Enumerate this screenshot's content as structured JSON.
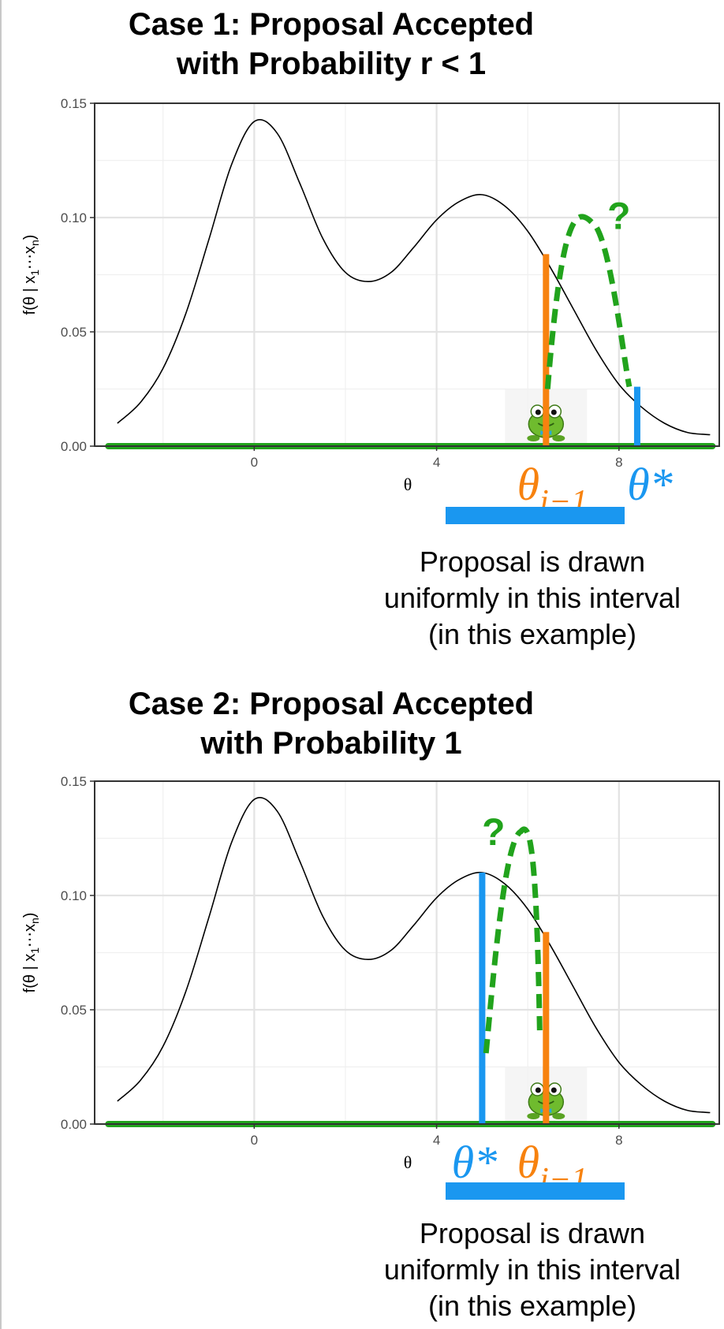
{
  "chart_data": [
    {
      "type": "line",
      "title_lines": [
        "Case 1: Proposal Accepted",
        "with Probability r < 1"
      ],
      "xlabel": "θ",
      "ylabel": "f(θ | x1⋯xn)",
      "xlim": [
        -3.5,
        10.2
      ],
      "ylim": [
        0,
        0.15
      ],
      "x_ticks": [
        0,
        4,
        8
      ],
      "y_ticks": [
        "0.00",
        "0.05",
        "0.10",
        "0.15"
      ],
      "grid": true,
      "density": {
        "x": [
          -3,
          -2.5,
          -2,
          -1.5,
          -1,
          -0.5,
          0,
          0.5,
          1,
          1.5,
          2,
          2.5,
          3,
          3.5,
          4,
          4.5,
          5,
          5.5,
          6,
          6.5,
          7,
          7.5,
          8,
          8.5,
          9,
          9.5,
          10
        ],
        "y": [
          0.01,
          0.019,
          0.034,
          0.058,
          0.09,
          0.123,
          0.142,
          0.137,
          0.115,
          0.091,
          0.076,
          0.072,
          0.076,
          0.087,
          0.099,
          0.107,
          0.11,
          0.105,
          0.094,
          0.078,
          0.06,
          0.042,
          0.027,
          0.017,
          0.01,
          0.006,
          0.005
        ]
      },
      "current_theta": {
        "label": "θi−1",
        "x": 6.4,
        "y": 0.084,
        "color": "#f7820f"
      },
      "proposal_theta": {
        "label": "θ*",
        "x": 8.4,
        "y": 0.026,
        "color": "#1a97f0"
      },
      "jump_annotation": {
        "symbol": "?",
        "color": "#21a31c"
      },
      "interval_note_lines": [
        "Proposal is drawn",
        "uniformly in this interval",
        "(in this example)"
      ]
    },
    {
      "type": "line",
      "title_lines": [
        "Case 2: Proposal Accepted",
        "with Probability 1"
      ],
      "xlabel": "θ",
      "ylabel": "f(θ | x1⋯xn)",
      "xlim": [
        -3.5,
        10.2
      ],
      "ylim": [
        0,
        0.15
      ],
      "x_ticks": [
        0,
        4,
        8
      ],
      "y_ticks": [
        "0.00",
        "0.05",
        "0.10",
        "0.15"
      ],
      "grid": true,
      "density": {
        "x": [
          -3,
          -2.5,
          -2,
          -1.5,
          -1,
          -0.5,
          0,
          0.5,
          1,
          1.5,
          2,
          2.5,
          3,
          3.5,
          4,
          4.5,
          5,
          5.5,
          6,
          6.5,
          7,
          7.5,
          8,
          8.5,
          9,
          9.5,
          10
        ],
        "y": [
          0.01,
          0.019,
          0.034,
          0.058,
          0.09,
          0.123,
          0.142,
          0.137,
          0.115,
          0.091,
          0.076,
          0.072,
          0.076,
          0.087,
          0.099,
          0.107,
          0.11,
          0.105,
          0.094,
          0.078,
          0.06,
          0.042,
          0.027,
          0.017,
          0.01,
          0.006,
          0.005
        ]
      },
      "current_theta": {
        "label": "θi−1",
        "x": 6.4,
        "y": 0.084,
        "color": "#f7820f"
      },
      "proposal_theta": {
        "label": "θ*",
        "x": 5.0,
        "y": 0.11,
        "color": "#1a97f0"
      },
      "jump_annotation": {
        "symbol": "?",
        "color": "#21a31c"
      },
      "interval_note_lines": [
        "Proposal is drawn",
        "uniformly in this interval",
        "(in this example)"
      ]
    }
  ]
}
